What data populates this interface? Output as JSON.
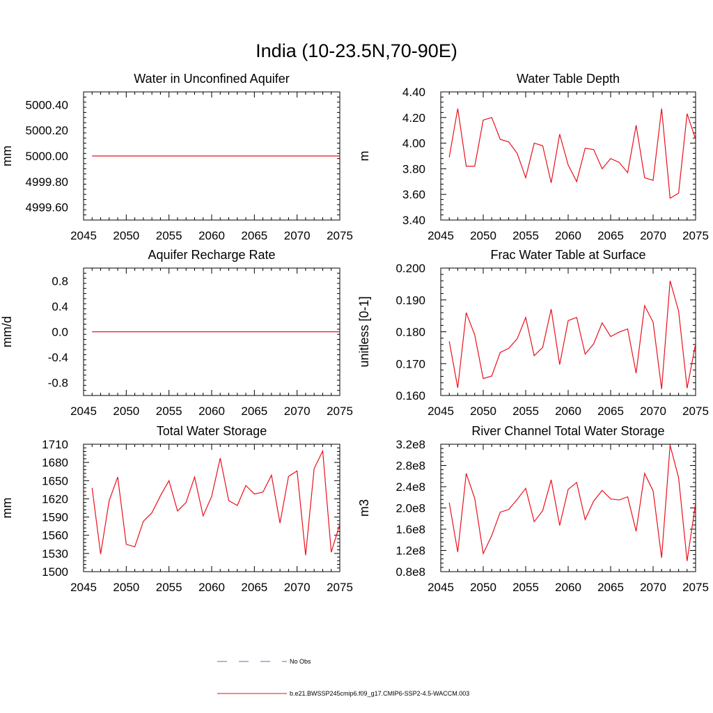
{
  "figure": {
    "title": "India (10-23.5N,70-90E)"
  },
  "legend": {
    "entries": [
      {
        "label": "No Obs",
        "color": "#5a6fb0",
        "style": "dashed"
      },
      {
        "label": "b.e21.BWSSP245cmip6.f09_g17.CMIP6-SSP2-4.5-WACCM.003",
        "color": "#e8101c",
        "style": "solid"
      }
    ]
  },
  "colors": {
    "series": "#e8101c",
    "axis": "#000000"
  },
  "chart_data": [
    {
      "type": "line",
      "title": "Water in Unconfined Aquifer",
      "ylabel": "mm",
      "xlim": [
        2045,
        2075
      ],
      "ylim": [
        4999.5,
        5000.5
      ],
      "xticks": [
        "2045",
        "2050",
        "2055",
        "2060",
        "2065",
        "2070",
        "2075"
      ],
      "yticks": [
        "4999.60",
        "4999.80",
        "5000.00",
        "5000.20",
        "5000.40"
      ],
      "x": [
        2046,
        2047,
        2048,
        2049,
        2050,
        2051,
        2052,
        2053,
        2054,
        2055,
        2056,
        2057,
        2058,
        2059,
        2060,
        2061,
        2062,
        2063,
        2064,
        2065,
        2066,
        2067,
        2068,
        2069,
        2070,
        2071,
        2072,
        2073,
        2074,
        2075
      ],
      "values": [
        5000,
        5000,
        5000,
        5000,
        5000,
        5000,
        5000,
        5000,
        5000,
        5000,
        5000,
        5000,
        5000,
        5000,
        5000,
        5000,
        5000,
        5000,
        5000,
        5000,
        5000,
        5000,
        5000,
        5000,
        5000,
        5000,
        5000,
        5000,
        5000,
        5000
      ]
    },
    {
      "type": "line",
      "title": "Water Table Depth",
      "ylabel": "m",
      "xlim": [
        2045,
        2075
      ],
      "ylim": [
        3.4,
        4.4
      ],
      "xticks": [
        "2045",
        "2050",
        "2055",
        "2060",
        "2065",
        "2070",
        "2075"
      ],
      "yticks": [
        "3.40",
        "3.60",
        "3.80",
        "4.00",
        "4.20",
        "4.40"
      ],
      "x": [
        2046,
        2047,
        2048,
        2049,
        2050,
        2051,
        2052,
        2053,
        2054,
        2055,
        2056,
        2057,
        2058,
        2059,
        2060,
        2061,
        2062,
        2063,
        2064,
        2065,
        2066,
        2067,
        2068,
        2069,
        2070,
        2071,
        2072,
        2073,
        2074,
        2075
      ],
      "values": [
        3.89,
        4.27,
        3.82,
        3.82,
        4.18,
        4.2,
        4.03,
        4.01,
        3.92,
        3.73,
        4.0,
        3.98,
        3.69,
        4.07,
        3.83,
        3.7,
        3.96,
        3.95,
        3.8,
        3.88,
        3.85,
        3.77,
        4.14,
        3.73,
        3.71,
        4.27,
        3.57,
        3.61,
        4.23,
        4.03
      ]
    },
    {
      "type": "line",
      "title": "Aquifer Recharge Rate",
      "ylabel": "mm/d",
      "xlim": [
        2045,
        2075
      ],
      "ylim": [
        -1.0,
        1.0
      ],
      "xticks": [
        "2045",
        "2050",
        "2055",
        "2060",
        "2065",
        "2070",
        "2075"
      ],
      "yticks": [
        "-0.8",
        "-0.4",
        "0.0",
        "0.4",
        "0.8"
      ],
      "x": [
        2046,
        2047,
        2048,
        2049,
        2050,
        2051,
        2052,
        2053,
        2054,
        2055,
        2056,
        2057,
        2058,
        2059,
        2060,
        2061,
        2062,
        2063,
        2064,
        2065,
        2066,
        2067,
        2068,
        2069,
        2070,
        2071,
        2072,
        2073,
        2074,
        2075
      ],
      "values": [
        0,
        0,
        0,
        0,
        0,
        0,
        0,
        0,
        0,
        0,
        0,
        0,
        0,
        0,
        0,
        0,
        0,
        0,
        0,
        0,
        0,
        0,
        0,
        0,
        0,
        0,
        0,
        0,
        0,
        0
      ]
    },
    {
      "type": "line",
      "title": "Frac Water Table at Surface",
      "ylabel": "unitless [0-1]",
      "xlim": [
        2045,
        2075
      ],
      "ylim": [
        0.16,
        0.2
      ],
      "xticks": [
        "2045",
        "2050",
        "2055",
        "2060",
        "2065",
        "2070",
        "2075"
      ],
      "yticks": [
        "0.160",
        "0.170",
        "0.180",
        "0.190",
        "0.200"
      ],
      "x": [
        2046,
        2047,
        2048,
        2049,
        2050,
        2051,
        2052,
        2053,
        2054,
        2055,
        2056,
        2057,
        2058,
        2059,
        2060,
        2061,
        2062,
        2063,
        2064,
        2065,
        2066,
        2067,
        2068,
        2069,
        2070,
        2071,
        2072,
        2073,
        2074,
        2075
      ],
      "values": [
        0.177,
        0.1624,
        0.186,
        0.179,
        0.1653,
        0.1661,
        0.1735,
        0.1748,
        0.1778,
        0.1845,
        0.1725,
        0.1751,
        0.1871,
        0.1697,
        0.1835,
        0.1845,
        0.173,
        0.1762,
        0.1828,
        0.1785,
        0.1799,
        0.1809,
        0.167,
        0.1882,
        0.183,
        0.162,
        0.196,
        0.1865,
        0.1623,
        0.1762
      ]
    },
    {
      "type": "line",
      "title": "Total Water Storage",
      "ylabel": "mm",
      "xlim": [
        2045,
        2075
      ],
      "ylim": [
        1500,
        1710
      ],
      "xticks": [
        "2045",
        "2050",
        "2055",
        "2060",
        "2065",
        "2070",
        "2075"
      ],
      "yticks": [
        "1500",
        "1530",
        "1560",
        "1590",
        "1620",
        "1650",
        "1680",
        "1710"
      ],
      "x": [
        2046,
        2047,
        2048,
        2049,
        2050,
        2051,
        2052,
        2053,
        2054,
        2055,
        2056,
        2057,
        2058,
        2059,
        2060,
        2061,
        2062,
        2063,
        2064,
        2065,
        2066,
        2067,
        2068,
        2069,
        2070,
        2071,
        2072,
        2073,
        2074,
        2075
      ],
      "values": [
        1638,
        1529,
        1617,
        1656,
        1545,
        1541,
        1583,
        1597,
        1625,
        1650,
        1600,
        1614,
        1656,
        1592,
        1624,
        1687,
        1617,
        1609,
        1642,
        1628,
        1631,
        1659,
        1580,
        1657,
        1666,
        1527,
        1670,
        1699,
        1532,
        1578
      ]
    },
    {
      "type": "line",
      "title": "River Channel Total Water Storage",
      "ylabel": "m3",
      "xlim": [
        2045,
        2075
      ],
      "ylim": [
        80000000,
        320000000
      ],
      "xticks": [
        "2045",
        "2050",
        "2055",
        "2060",
        "2065",
        "2070",
        "2075"
      ],
      "yticks": [
        "0.8e8",
        "1.2e8",
        "1.6e8",
        "2.0e8",
        "2.4e8",
        "2.8e8",
        "3.2e8"
      ],
      "x": [
        2046,
        2047,
        2048,
        2049,
        2050,
        2051,
        2052,
        2053,
        2054,
        2055,
        2056,
        2057,
        2058,
        2059,
        2060,
        2061,
        2062,
        2063,
        2064,
        2065,
        2066,
        2067,
        2068,
        2069,
        2070,
        2071,
        2072,
        2073,
        2074,
        2075
      ],
      "values": [
        210000000,
        117000000,
        265000000,
        218000000,
        114000000,
        148000000,
        192000000,
        197000000,
        216000000,
        237000000,
        174000000,
        195000000,
        253000000,
        167000000,
        235000000,
        248000000,
        178000000,
        213000000,
        233000000,
        217000000,
        215000000,
        221000000,
        156000000,
        265000000,
        232000000,
        106000000,
        318000000,
        257000000,
        100000000,
        209000000
      ]
    }
  ]
}
